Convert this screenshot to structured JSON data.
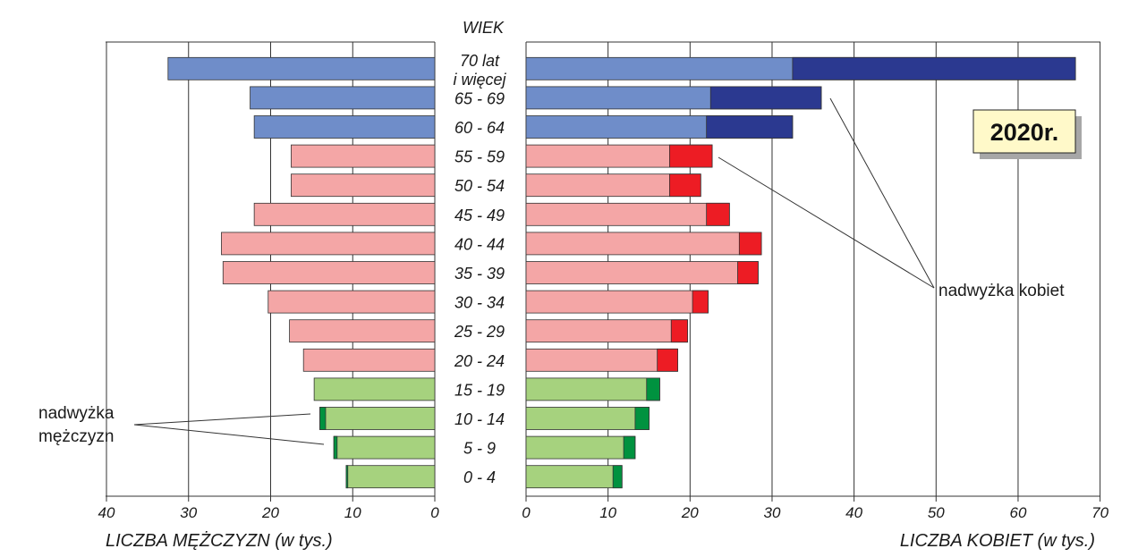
{
  "chart_data": {
    "type": "bar",
    "title": "2020r.",
    "age_header": "WIEK",
    "categories": [
      "70 lat i więcej",
      "65 - 69",
      "60 - 64",
      "55 - 59",
      "50 - 54",
      "45 - 49",
      "40 - 44",
      "35 - 39",
      "30 - 34",
      "25 - 29",
      "20 - 24",
      "15 - 19",
      "10 - 14",
      "5 - 9",
      "0 - 4"
    ],
    "category_lines": [
      [
        "70 lat",
        "i więcej"
      ],
      [
        "65 - 69"
      ],
      [
        "60 - 64"
      ],
      [
        "55 - 59"
      ],
      [
        "50 - 54"
      ],
      [
        "45 - 49"
      ],
      [
        "40 - 44"
      ],
      [
        "35 - 39"
      ],
      [
        "30 - 34"
      ],
      [
        "25 - 29"
      ],
      [
        "20 - 24"
      ],
      [
        "15 - 19"
      ],
      [
        "10 - 14"
      ],
      [
        "5 - 9"
      ],
      [
        "0 - 4"
      ]
    ],
    "series": [
      {
        "name": "LICZBA MĘŻCZYZN (w tys.)",
        "values": [
          32.5,
          22.5,
          22.0,
          17.5,
          17.5,
          22.0,
          26.0,
          25.8,
          20.3,
          17.7,
          16.0,
          14.7,
          14.0,
          12.3,
          10.8
        ]
      },
      {
        "name": "LICZBA KOBIET (w tys.)",
        "values": [
          67.0,
          36.0,
          32.5,
          22.7,
          21.3,
          24.8,
          28.7,
          28.3,
          22.2,
          19.7,
          18.5,
          16.3,
          15.0,
          13.3,
          11.7
        ]
      }
    ],
    "overlap": [
      32.5,
      22.5,
      22.0,
      17.5,
      17.5,
      22.0,
      26.0,
      25.8,
      20.3,
      17.7,
      16.0,
      14.7,
      13.3,
      11.9,
      10.6
    ],
    "groups": [
      "post",
      "post",
      "post",
      "working",
      "working",
      "working",
      "working",
      "working",
      "working",
      "working",
      "working",
      "pre",
      "pre",
      "pre",
      "pre"
    ],
    "left_axis": {
      "label": "LICZBA MĘŻCZYZN (w tys.)",
      "range": [
        40,
        0
      ],
      "ticks": [
        40,
        30,
        20,
        10,
        0
      ]
    },
    "right_axis": {
      "label": "LICZBA KOBIET (w tys.)",
      "range": [
        0,
        70
      ],
      "ticks": [
        0,
        10,
        20,
        30,
        40,
        50,
        60,
        70
      ]
    },
    "grid": true,
    "annotations": {
      "female_surplus": "nadwyżka kobiet",
      "male_surplus_lines": [
        "nadwyżka",
        "mężczyzn"
      ]
    },
    "colors": {
      "post_light": "#6F8DC9",
      "post_dark": "#2B3990",
      "working_light": "#F4A6A6",
      "working_dark": "#ED1C24",
      "pre_light": "#A6D27E",
      "pre_dark": "#00923F",
      "badge_fill": "#FFF9C9",
      "badge_shadow": "#A7A7A7"
    }
  }
}
